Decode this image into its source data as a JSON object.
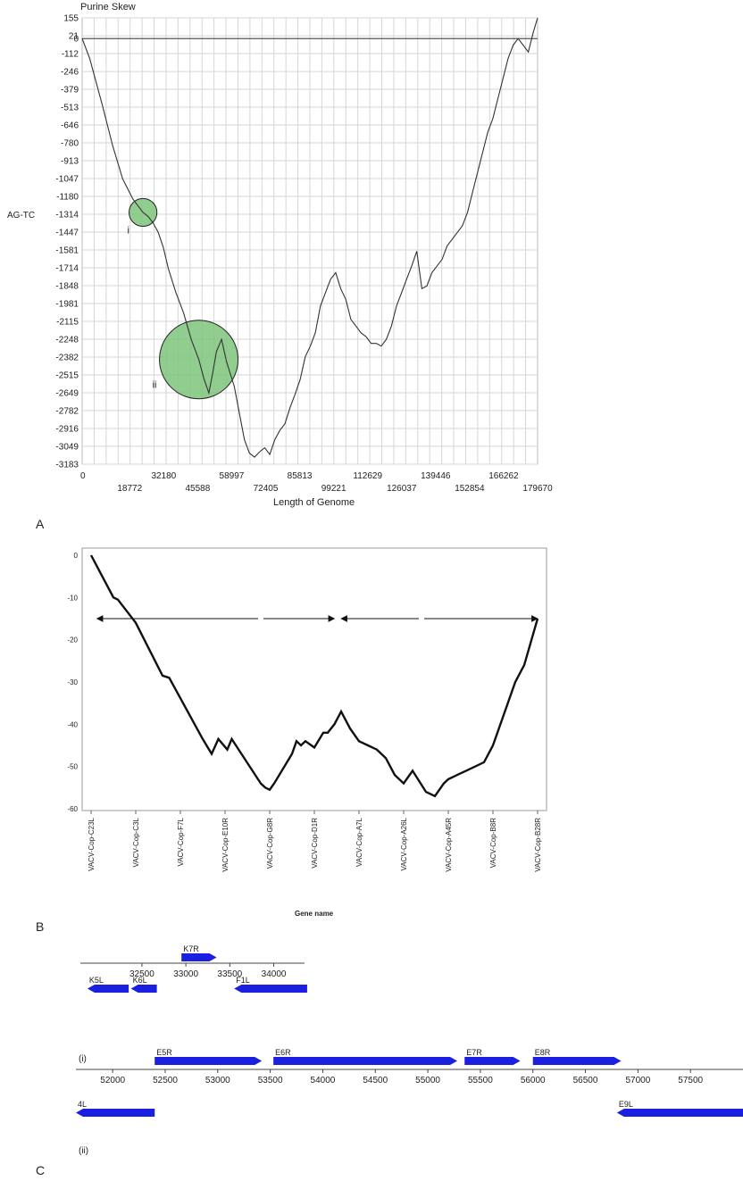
{
  "panel_labels": [
    "A",
    "B",
    "C"
  ],
  "chart_data": [
    {
      "type": "line",
      "title": "Purine Skew",
      "ylabel": "AG-TC",
      "xlabel": "Length of Genome",
      "y_ticks": [
        155,
        21,
        0,
        -112,
        -246,
        -379,
        -513,
        -646,
        -780,
        -913,
        -1047,
        -1180,
        -1314,
        -1447,
        -1581,
        -1714,
        -1848,
        -1981,
        -2115,
        -2248,
        -2382,
        -2515,
        -2649,
        -2782,
        -2916,
        -3049,
        -3183
      ],
      "x_ticks": [
        0,
        18772,
        32180,
        45588,
        58997,
        72405,
        85813,
        99221,
        112629,
        126037,
        139446,
        152854,
        166262,
        179670
      ],
      "ylim": [
        -3183,
        155
      ],
      "xlim": [
        0,
        179670
      ],
      "grid": true,
      "series": [
        {
          "x": [
            0,
            3000,
            8000,
            12000,
            16000,
            20000,
            24000,
            26000,
            28000,
            30000,
            32000,
            34000,
            37000,
            40000,
            43000,
            46000,
            48000,
            50000,
            51500,
            53000,
            55000,
            57000,
            60000,
            62000,
            64000,
            66000,
            68000,
            70000,
            72000,
            74000,
            76000,
            78000,
            80000,
            82000,
            84000,
            86000,
            88000,
            90000,
            92000,
            94000,
            96000,
            98000,
            100000,
            102000,
            104000,
            106000,
            108000,
            110000,
            112000,
            114000,
            116000,
            118000,
            120000,
            122000,
            124000,
            126000,
            128000,
            130000,
            132000,
            134000,
            136000,
            138000,
            140000,
            142000,
            144000,
            146000,
            148000,
            150000,
            152000,
            154000,
            156000,
            158000,
            160000,
            162000,
            164000,
            166000,
            168000,
            170000,
            172000,
            174000,
            176000,
            178000,
            179670
          ],
          "y": [
            0,
            -150,
            -500,
            -800,
            -1050,
            -1200,
            -1300,
            -1330,
            -1380,
            -1450,
            -1560,
            -1720,
            -1900,
            -2050,
            -2250,
            -2400,
            -2540,
            -2650,
            -2500,
            -2340,
            -2250,
            -2420,
            -2600,
            -2800,
            -3000,
            -3100,
            -3130,
            -3090,
            -3060,
            -3110,
            -3000,
            -2930,
            -2880,
            -2760,
            -2660,
            -2550,
            -2380,
            -2300,
            -2200,
            -2000,
            -1900,
            -1800,
            -1750,
            -1870,
            -1950,
            -2100,
            -2150,
            -2200,
            -2230,
            -2280,
            -2280,
            -2300,
            -2250,
            -2150,
            -2000,
            -1900,
            -1800,
            -1700,
            -1590,
            -1870,
            -1850,
            -1750,
            -1700,
            -1650,
            -1550,
            -1500,
            -1450,
            -1400,
            -1300,
            -1150,
            -1000,
            -850,
            -700,
            -600,
            -450,
            -300,
            -150,
            -50,
            0,
            -50,
            -100,
            50,
            155
          ]
        }
      ],
      "annotations": [
        {
          "label": "i",
          "x": 24000,
          "y": -1300,
          "radius_data_x": 5500
        },
        {
          "label": "ii",
          "x": 46000,
          "y": -2400,
          "radius_data_x": 15500
        }
      ],
      "highlight_color": "#7cc47a"
    },
    {
      "type": "line",
      "xlabel": "Gene name",
      "categories": [
        "VACV-Cop-C23L",
        "VACV-Cop-C3L",
        "VACV-Cop-F7L",
        "VACV-Cop-E10R",
        "VACV-Cop-G8R",
        "VACV-Cop-D1R",
        "VACV-Cop-A7L",
        "VACV-Cop-A26L",
        "VACV-Cop-A45R",
        "VACV-Cop-B8R",
        "VACV-Cop-B28R"
      ],
      "yticks": [
        0,
        -10,
        -20,
        -30,
        -40,
        -50,
        -60
      ],
      "ylim": [
        -60,
        0
      ],
      "series": [
        {
          "x": [
            0,
            0.5,
            0.6,
            1.0,
            1.6,
            1.75,
            2.5,
            2.7,
            2.85,
            3.05,
            3.15,
            3.8,
            3.9,
            4.0,
            4.1,
            4.5,
            4.6,
            4.7,
            4.8,
            5.0,
            5.2,
            5.3,
            5.45,
            5.6,
            5.8,
            6.0,
            6.2,
            6.4,
            6.6,
            6.8,
            7.0,
            7.2,
            7.5,
            7.7,
            7.9,
            8.0,
            8.2,
            8.4,
            8.6,
            8.8,
            9.0,
            9.5,
            9.7,
            10.0
          ],
          "y": [
            0,
            -10,
            -10.5,
            -16,
            -28.5,
            -29,
            -43.5,
            -47,
            -43.5,
            -46,
            -43.5,
            -54,
            -55,
            -55.5,
            -54,
            -47,
            -44,
            -45,
            -44,
            -45.5,
            -42,
            -42,
            -40,
            -37,
            -41,
            -44,
            -45,
            -46,
            -48,
            -52,
            -54,
            -51,
            -56,
            -57,
            -54,
            -53,
            -52,
            -51,
            -50,
            -49,
            -45,
            -30,
            -26,
            -15
          ]
        }
      ],
      "arrows": [
        {
          "from": 0.13,
          "to": 3.8
        },
        {
          "from": 3.8,
          "to": 5.45
        },
        {
          "from": 5.6,
          "to": 7.4
        },
        {
          "from": 7.4,
          "to": 10.0
        }
      ]
    },
    {
      "type": "gene-map",
      "caption": "(i)",
      "axis_ticks": [
        32500,
        33000,
        33500,
        34000
      ],
      "range": [
        31800,
        34350
      ],
      "strand_plus": [
        {
          "name": "K7R",
          "start": 32950,
          "end": 33350
        }
      ],
      "strand_minus": [
        {
          "name": "K5L",
          "start": 31880,
          "end": 32350
        },
        {
          "name": "K6L",
          "start": 32375,
          "end": 32670
        },
        {
          "name": "F1L",
          "start": 33550,
          "end": 34380
        }
      ],
      "gene_color": "#1a1fe0"
    },
    {
      "type": "gene-map",
      "caption": "(ii)",
      "axis_ticks": [
        52000,
        52500,
        53000,
        53500,
        54000,
        54500,
        55000,
        55500,
        56000,
        56500,
        57000,
        57500
      ],
      "range": [
        51650,
        58000
      ],
      "strand_plus": [
        {
          "name": "E5R",
          "start": 52400,
          "end": 53420
        },
        {
          "name": "E6R",
          "start": 53530,
          "end": 55280
        },
        {
          "name": "E7R",
          "start": 55350,
          "end": 55880
        },
        {
          "name": "E8R",
          "start": 56000,
          "end": 56840
        }
      ],
      "strand_minus": [
        {
          "name": "4L",
          "start": 51650,
          "end": 52400
        },
        {
          "name": "E9L",
          "start": 56800,
          "end": 58000
        }
      ],
      "gene_color": "#1a1fe0"
    }
  ]
}
